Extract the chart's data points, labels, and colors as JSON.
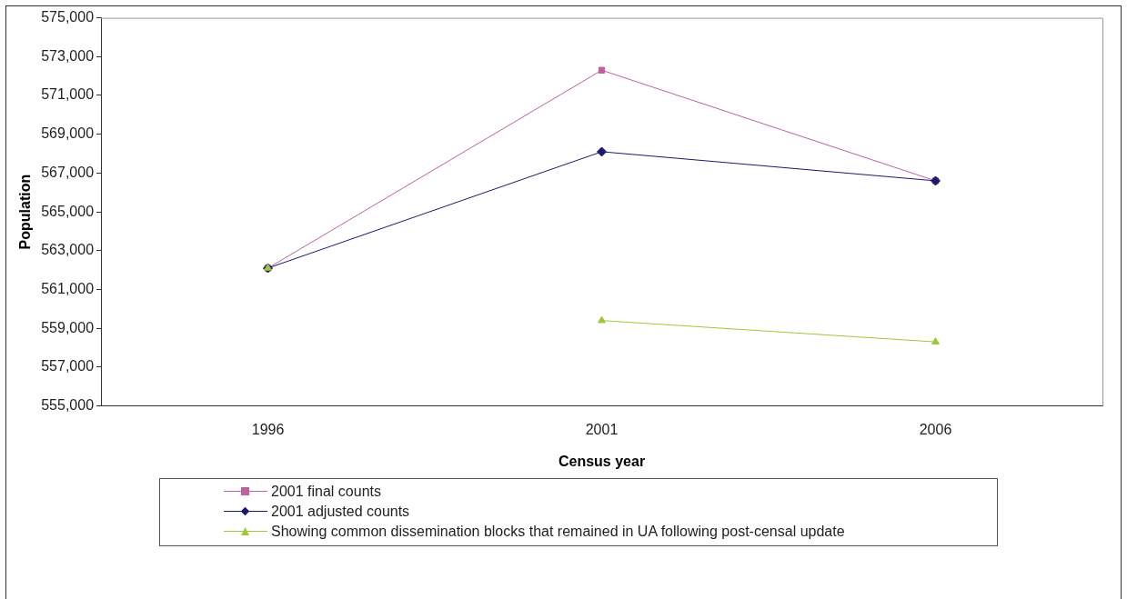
{
  "chart_data": {
    "type": "line",
    "xlabel": "Census year",
    "ylabel": "Population",
    "categories": [
      "1996",
      "2001",
      "2006"
    ],
    "series": [
      {
        "name": "2001 final counts",
        "color": "#c0609c",
        "marker": "square",
        "values": [
          562100,
          572300,
          566600
        ]
      },
      {
        "name": "2001 adjusted counts",
        "color": "#1c1a6a",
        "marker": "diamond",
        "values": [
          562100,
          568100,
          566600
        ]
      },
      {
        "name": "Showing common dissemination blocks that remained in UA following post-censal update",
        "color": "#9cc83a",
        "marker": "triangle",
        "values": [
          null,
          559400,
          558300
        ]
      },
      {
        "type": "scatter",
        "color": "#9cc83a",
        "marker": "triangle",
        "values": [
          562100,
          null,
          null
        ]
      }
    ],
    "ylim": [
      555000,
      575000
    ],
    "yticks": [
      {
        "value": 555000,
        "label": "555,000"
      },
      {
        "value": 557000,
        "label": "557,000"
      },
      {
        "value": 559000,
        "label": "559,000"
      },
      {
        "value": 561000,
        "label": "561,000"
      },
      {
        "value": 563000,
        "label": "563,000"
      },
      {
        "value": 565000,
        "label": "565,000"
      },
      {
        "value": 567000,
        "label": "567,000"
      },
      {
        "value": 569000,
        "label": "569,000"
      },
      {
        "value": 571000,
        "label": "571,000"
      },
      {
        "value": 573000,
        "label": "573,000"
      },
      {
        "value": 575000,
        "label": "575,000"
      }
    ],
    "grid": false,
    "legend": "bottom",
    "line_style": "solid"
  }
}
